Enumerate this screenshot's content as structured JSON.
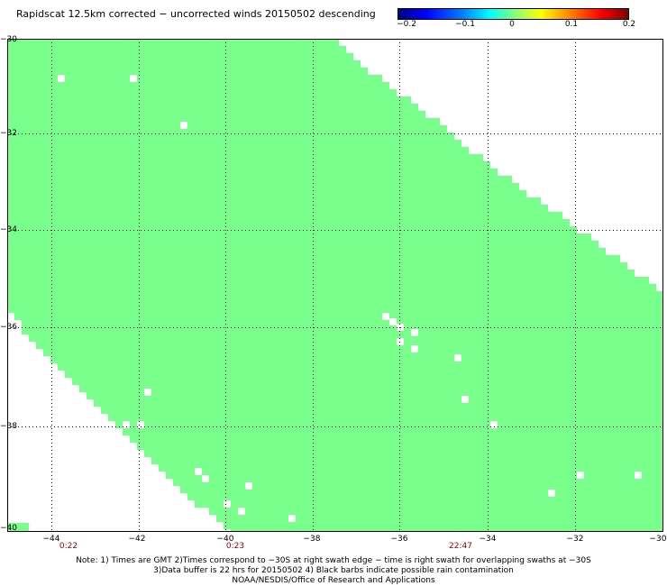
{
  "title": "Rapidscat 12.5km corrected − uncorrected winds 20150502 descending",
  "colorbar": {
    "ticks": [
      "−0.2",
      "−0.1",
      "0",
      "0.1",
      "0.2"
    ],
    "range": [
      -0.2,
      0.2
    ]
  },
  "colors": {
    "data": "#78ff8c",
    "grid": "#000000",
    "time": "#8b0000"
  },
  "map_data": {
    "lon_range": [
      -45.5,
      -30
    ],
    "lat_range": [
      -40,
      -30
    ],
    "lat_ticks": [
      "−30",
      "−32",
      "−34",
      "−36",
      "−38",
      "−40"
    ],
    "lon_ticks": [
      "−44",
      "−42",
      "−40",
      "−38",
      "−36",
      "−34",
      "−32",
      "−30"
    ],
    "times": [
      "0:22",
      "0:23",
      "22:47"
    ],
    "field_value": 0
  },
  "notes": [
    "Note: 1) Times are GMT 2)Times correspond to −30S at right swath edge − time is right swath for overlapping swaths at −30S",
    "3)Data buffer is 22 hrs for 20150502 4) Black barbs indicate possible rain contamination",
    "NOAA/NESDIS/Office of Research and Applications"
  ]
}
